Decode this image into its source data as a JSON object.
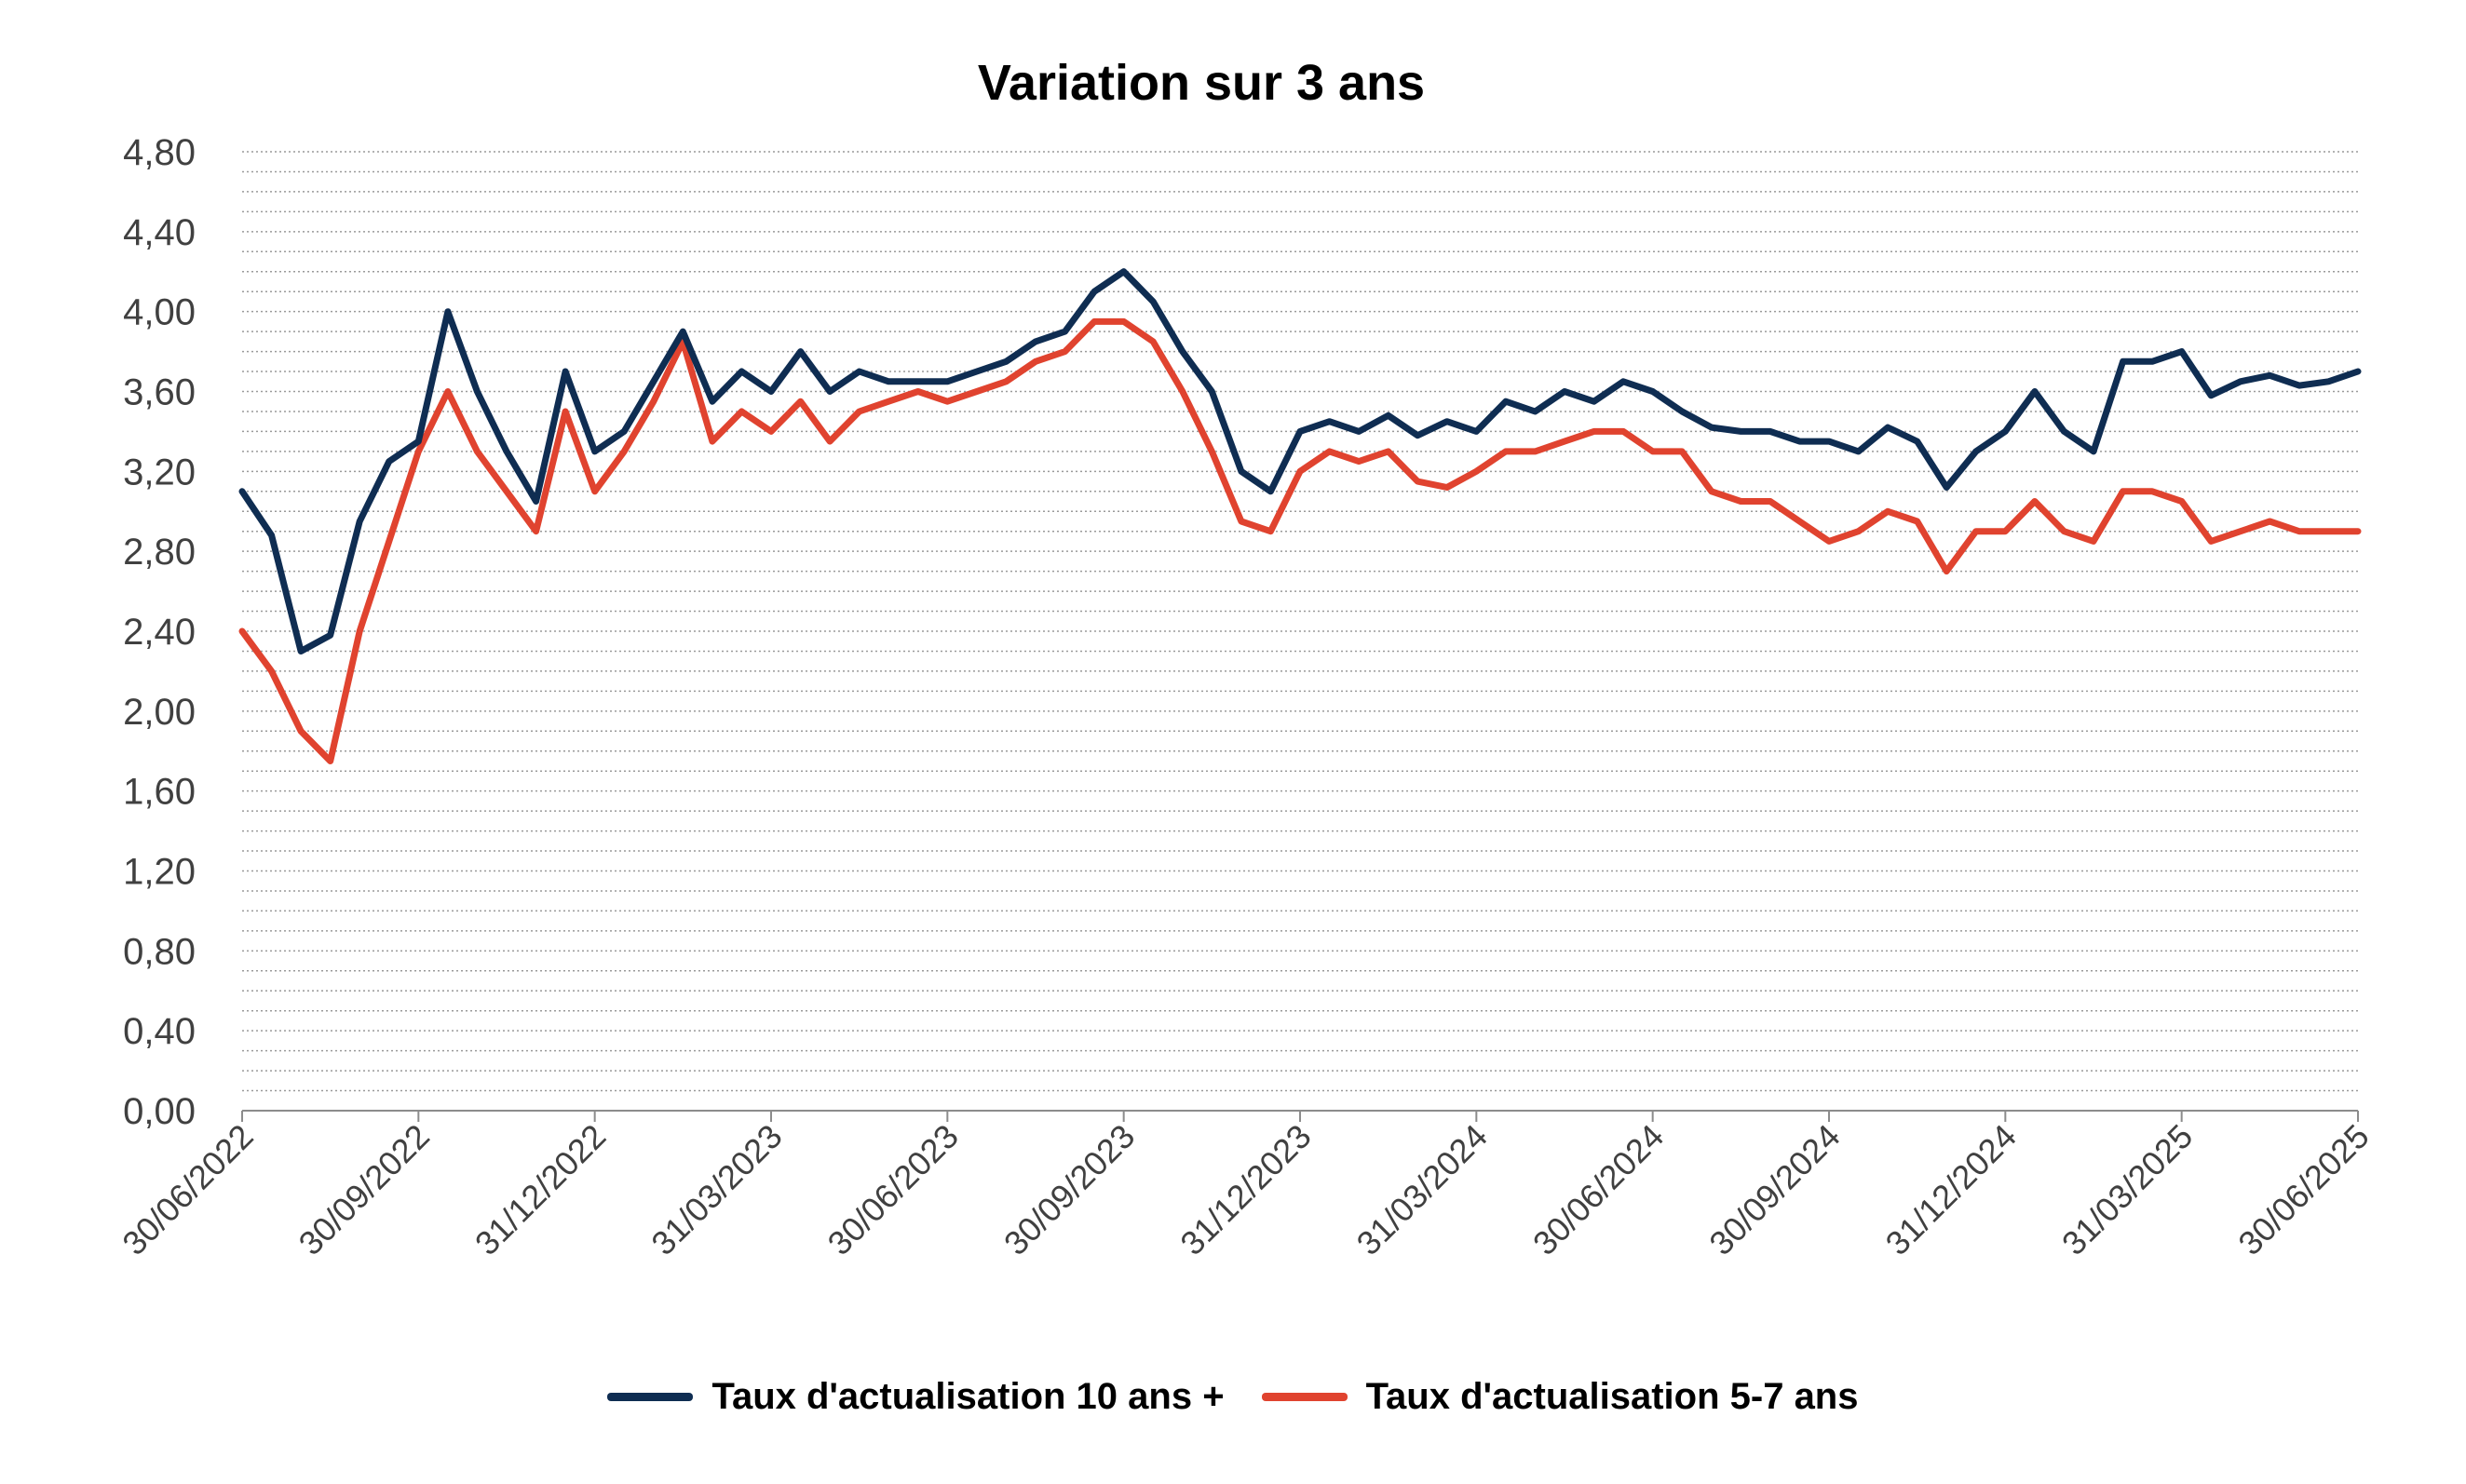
{
  "chart_data": {
    "type": "line",
    "title": "Variation sur 3 ans",
    "xlabel": "",
    "ylabel": "",
    "ylim": [
      0,
      4.8
    ],
    "yticks": [
      "0,00",
      "0,40",
      "0,80",
      "1,20",
      "1,60",
      "2,00",
      "2,40",
      "2,80",
      "3,20",
      "3,60",
      "4,00",
      "4,40",
      "4,80"
    ],
    "xticks": [
      "30/06/2022",
      "30/09/2022",
      "31/12/2022",
      "31/03/2023",
      "30/06/2023",
      "30/09/2023",
      "31/12/2023",
      "31/03/2024",
      "30/06/2024",
      "30/09/2024",
      "31/12/2024",
      "31/03/2025",
      "30/06/2025"
    ],
    "grid": "horizontal-dotted",
    "legend_position": "bottom",
    "x": [
      "30/06/2022",
      "15/07/2022",
      "31/07/2022",
      "15/08/2022",
      "31/08/2022",
      "15/09/2022",
      "30/09/2022",
      "15/10/2022",
      "31/10/2022",
      "15/11/2022",
      "30/11/2022",
      "15/12/2022",
      "31/12/2022",
      "15/01/2023",
      "31/01/2023",
      "15/02/2023",
      "28/02/2023",
      "15/03/2023",
      "31/03/2023",
      "15/04/2023",
      "30/04/2023",
      "15/05/2023",
      "31/05/2023",
      "15/06/2023",
      "30/06/2023",
      "15/07/2023",
      "31/07/2023",
      "15/08/2023",
      "31/08/2023",
      "15/09/2023",
      "30/09/2023",
      "15/10/2023",
      "31/10/2023",
      "15/11/2023",
      "30/11/2023",
      "15/12/2023",
      "31/12/2023",
      "15/01/2024",
      "31/01/2024",
      "15/02/2024",
      "29/02/2024",
      "15/03/2024",
      "31/03/2024",
      "15/04/2024",
      "30/04/2024",
      "15/05/2024",
      "31/05/2024",
      "15/06/2024",
      "30/06/2024",
      "15/07/2024",
      "31/07/2024",
      "15/08/2024",
      "31/08/2024",
      "15/09/2024",
      "30/09/2024",
      "15/10/2024",
      "31/10/2024",
      "15/11/2024",
      "30/11/2024",
      "15/12/2024",
      "31/12/2024",
      "15/01/2025",
      "31/01/2025",
      "15/02/2025",
      "28/02/2025",
      "15/03/2025",
      "31/03/2025",
      "15/04/2025",
      "30/04/2025",
      "15/05/2025",
      "31/05/2025",
      "15/06/2025",
      "30/06/2025"
    ],
    "series": [
      {
        "name": "Taux d'actualisation 10 ans +",
        "color": "#0f2d52",
        "values": [
          3.1,
          2.88,
          2.3,
          2.38,
          2.95,
          3.25,
          3.35,
          4.0,
          3.6,
          3.3,
          3.05,
          3.7,
          3.3,
          3.4,
          3.65,
          3.9,
          3.55,
          3.7,
          3.6,
          3.8,
          3.6,
          3.7,
          3.65,
          3.65,
          3.65,
          3.7,
          3.75,
          3.85,
          3.9,
          4.1,
          4.2,
          4.05,
          3.8,
          3.6,
          3.2,
          3.1,
          3.4,
          3.45,
          3.4,
          3.48,
          3.38,
          3.45,
          3.4,
          3.55,
          3.5,
          3.6,
          3.55,
          3.65,
          3.6,
          3.5,
          3.42,
          3.4,
          3.4,
          3.35,
          3.35,
          3.3,
          3.42,
          3.35,
          3.12,
          3.3,
          3.4,
          3.6,
          3.4,
          3.3,
          3.75,
          3.75,
          3.8,
          3.58,
          3.65,
          3.68,
          3.63,
          3.65,
          3.7
        ]
      },
      {
        "name": "Taux d'actualisation 5-7 ans",
        "color": "#e0432f",
        "values": [
          2.4,
          2.2,
          1.9,
          1.75,
          2.4,
          2.85,
          3.3,
          3.6,
          3.3,
          3.1,
          2.9,
          3.5,
          3.1,
          3.3,
          3.55,
          3.85,
          3.35,
          3.5,
          3.4,
          3.55,
          3.35,
          3.5,
          3.55,
          3.6,
          3.55,
          3.6,
          3.65,
          3.75,
          3.8,
          3.95,
          3.95,
          3.85,
          3.6,
          3.3,
          2.95,
          2.9,
          3.2,
          3.3,
          3.25,
          3.3,
          3.15,
          3.12,
          3.2,
          3.3,
          3.3,
          3.35,
          3.4,
          3.4,
          3.3,
          3.3,
          3.1,
          3.05,
          3.05,
          2.95,
          2.85,
          2.9,
          3.0,
          2.95,
          2.7,
          2.9,
          2.9,
          3.05,
          2.9,
          2.85,
          3.1,
          3.1,
          3.05,
          2.85,
          2.9,
          2.95,
          2.9,
          2.9,
          2.9
        ]
      }
    ]
  }
}
